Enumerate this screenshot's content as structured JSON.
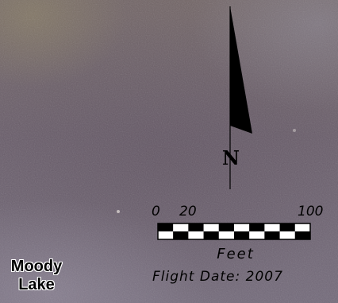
{
  "map": {
    "place_label_line1": "Moody",
    "place_label_line2": "Lake",
    "north_label": "N",
    "scale": {
      "tick_labels": [
        "0",
        "20",
        "100"
      ],
      "units": "Feet",
      "segment_colors": [
        "#000000",
        "#ffffff"
      ]
    },
    "flight_date_text": "Flight Date: 2007"
  }
}
